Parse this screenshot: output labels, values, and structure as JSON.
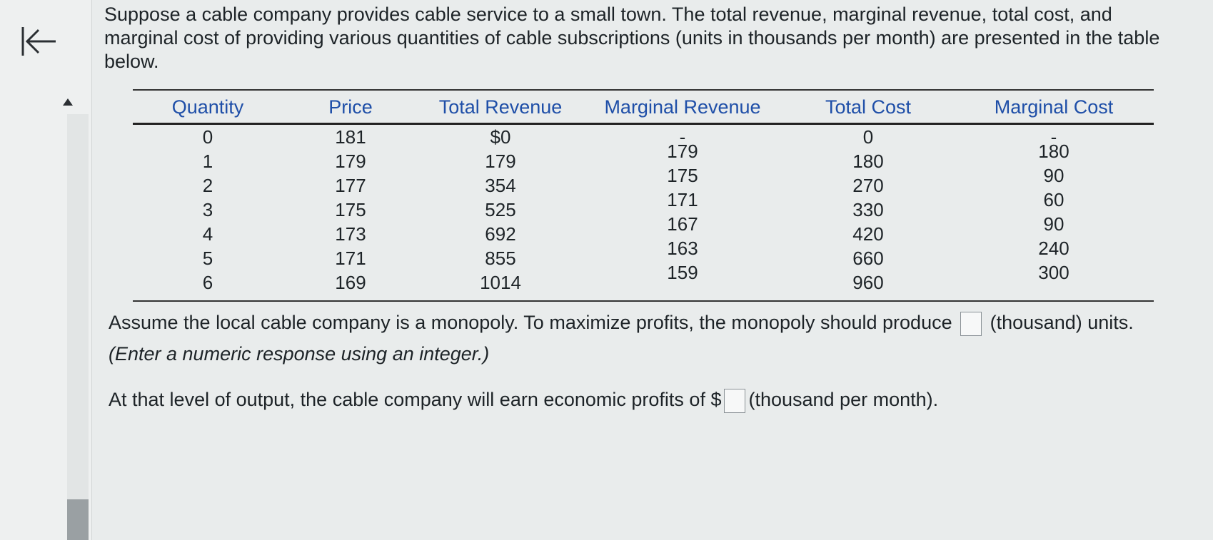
{
  "intro": {
    "text": "Suppose a cable company provides cable service to a small town. The total revenue, marginal revenue, total cost, and marginal cost of providing various quantities of cable subscriptions (units in thousands per month) are presented in the table below."
  },
  "table": {
    "headers": [
      "Quantity",
      "Price",
      "Total Revenue",
      "Marginal Revenue",
      "Total Cost",
      "Marginal Cost"
    ],
    "rows": [
      [
        "0",
        "181",
        "$0",
        "-",
        "0",
        "-"
      ],
      [
        "1",
        "179",
        "179",
        "179",
        "180",
        "180"
      ],
      [
        "2",
        "177",
        "354",
        "175",
        "270",
        "90"
      ],
      [
        "3",
        "175",
        "525",
        "171",
        "330",
        "60"
      ],
      [
        "4",
        "173",
        "692",
        "167",
        "420",
        "90"
      ],
      [
        "5",
        "171",
        "855",
        "163",
        "660",
        "240"
      ],
      [
        "6",
        "169",
        "1014",
        "159",
        "960",
        "300"
      ]
    ]
  },
  "question1": {
    "before": "Assume the local cable company is a monopoly. To maximize profits, the monopoly should produce",
    "after": "(thousand) units.",
    "hint": "(Enter a numeric response using an integer.)",
    "answer": ""
  },
  "question2": {
    "before": "At that level of output, the cable company will earn economic profits of $",
    "after": "(thousand per month).",
    "answer": ""
  },
  "colors": {
    "header_text": "#1f4fa8",
    "body_text": "#1d2327",
    "background": "#e9ecec"
  },
  "icons": {
    "back": "back-to-start-icon",
    "collapse": "triangle-up-icon"
  }
}
